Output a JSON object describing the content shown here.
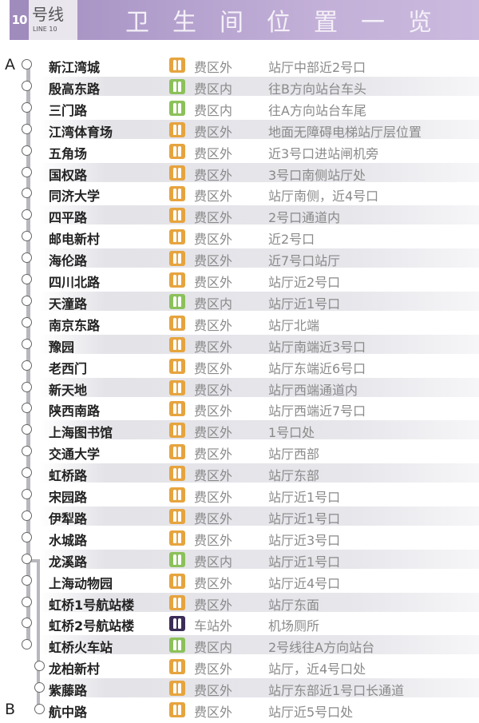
{
  "header": {
    "line_number": "10",
    "line_cn": "号线",
    "line_en": "LINE 10",
    "title": "卫生间位置一览"
  },
  "ends": {
    "start": "A",
    "end": "B"
  },
  "colors": {
    "outside": "#e6a43e",
    "inside": "#8cc15a",
    "station_outside": "#3b2d57"
  },
  "stations": [
    {
      "name": "新江湾城",
      "zone": "费区外",
      "type": "outside",
      "location": "站厅中部近2号口"
    },
    {
      "name": "殷高东路",
      "zone": "费区内",
      "type": "inside",
      "location": "往B方向站台车头"
    },
    {
      "name": "三门路",
      "zone": "费区内",
      "type": "inside",
      "location": "往A方向站台车尾"
    },
    {
      "name": "江湾体育场",
      "zone": "费区外",
      "type": "outside",
      "location": "地面无障碍电梯站厅层位置"
    },
    {
      "name": "五角场",
      "zone": "费区外",
      "type": "outside",
      "location": "近3号口进站闸机旁"
    },
    {
      "name": "国权路",
      "zone": "费区外",
      "type": "outside",
      "location": "3号口南侧站厅处"
    },
    {
      "name": "同济大学",
      "zone": "费区外",
      "type": "outside",
      "location": "站厅南侧，近4号口"
    },
    {
      "name": "四平路",
      "zone": "费区外",
      "type": "outside",
      "location": "2号口通道内"
    },
    {
      "name": "邮电新村",
      "zone": "费区外",
      "type": "outside",
      "location": "近2号口"
    },
    {
      "name": "海伦路",
      "zone": "费区外",
      "type": "outside",
      "location": "近7号口站厅"
    },
    {
      "name": "四川北路",
      "zone": "费区外",
      "type": "outside",
      "location": "站厅近2号口"
    },
    {
      "name": "天潼路",
      "zone": "费区内",
      "type": "inside",
      "location": "站厅近1号口"
    },
    {
      "name": "南京东路",
      "zone": "费区外",
      "type": "outside",
      "location": "站厅北端"
    },
    {
      "name": "豫园",
      "zone": "费区外",
      "type": "outside",
      "location": "站厅南端近3号口"
    },
    {
      "name": "老西门",
      "zone": "费区外",
      "type": "outside",
      "location": "站厅东端近6号口"
    },
    {
      "name": "新天地",
      "zone": "费区外",
      "type": "outside",
      "location": "站厅西端通道内"
    },
    {
      "name": "陕西南路",
      "zone": "费区外",
      "type": "outside",
      "location": "站厅西端近7号口"
    },
    {
      "name": "上海图书馆",
      "zone": "费区外",
      "type": "outside",
      "location": "1号口处"
    },
    {
      "name": "交通大学",
      "zone": "费区外",
      "type": "outside",
      "location": "站厅西部"
    },
    {
      "name": "虹桥路",
      "zone": "费区外",
      "type": "outside",
      "location": "站厅东部"
    },
    {
      "name": "宋园路",
      "zone": "费区外",
      "type": "outside",
      "location": "站厅近1号口"
    },
    {
      "name": "伊犁路",
      "zone": "费区外",
      "type": "outside",
      "location": "站厅近1号口"
    },
    {
      "name": "水城路",
      "zone": "费区外",
      "type": "outside",
      "location": "站厅近3号口"
    },
    {
      "name": "龙溪路",
      "zone": "费区内",
      "type": "inside",
      "location": "站厅近1号口"
    },
    {
      "name": "上海动物园",
      "zone": "费区外",
      "type": "outside",
      "location": "站厅近4号口"
    },
    {
      "name": "虹桥1号航站楼",
      "zone": "费区外",
      "type": "outside",
      "location": "站厅东面"
    },
    {
      "name": "虹桥2号航站楼",
      "zone": "车站外",
      "type": "station_outside",
      "location": "机场厕所"
    },
    {
      "name": "虹桥火车站",
      "zone": "费区内",
      "type": "inside",
      "location": "2号线往A方向站台"
    },
    {
      "name": "龙柏新村",
      "zone": "费区外",
      "type": "outside",
      "location": "站厅，近4号口处",
      "branch": true
    },
    {
      "name": "紫藤路",
      "zone": "费区外",
      "type": "outside",
      "location": "站厅东部近1号口长通道",
      "branch": true
    },
    {
      "name": "航中路",
      "zone": "费区外",
      "type": "outside",
      "location": "站厅近5号口处",
      "branch": true
    }
  ]
}
